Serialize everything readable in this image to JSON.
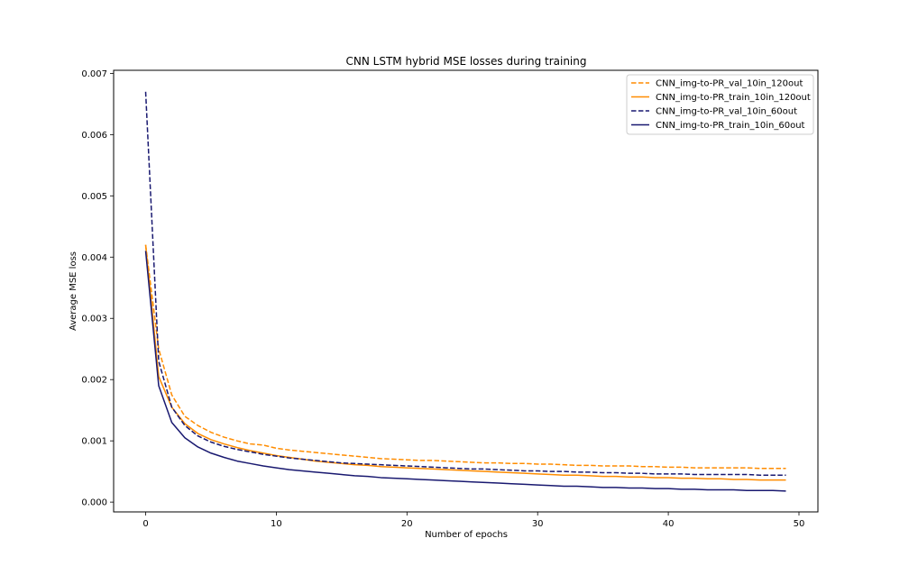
{
  "chart_data": {
    "type": "line",
    "title": "CNN LSTM hybrid MSE losses during training",
    "xlabel": "Number of epochs",
    "ylabel": "Average MSE loss",
    "xlim": [
      -2.45,
      51.45
    ],
    "ylim": [
      -0.00016,
      0.00705
    ],
    "xticks": [
      0,
      10,
      20,
      30,
      40,
      50
    ],
    "xtick_labels": [
      "0",
      "10",
      "20",
      "30",
      "40",
      "50"
    ],
    "yticks": [
      0.0,
      0.001,
      0.002,
      0.003,
      0.004,
      0.005,
      0.006,
      0.007
    ],
    "ytick_labels": [
      "0.000",
      "0.001",
      "0.002",
      "0.003",
      "0.004",
      "0.005",
      "0.006",
      "0.007"
    ],
    "grid": false,
    "legend_position": "top-right",
    "x": [
      0,
      1,
      2,
      3,
      4,
      5,
      6,
      7,
      8,
      9,
      10,
      11,
      12,
      13,
      14,
      15,
      16,
      17,
      18,
      19,
      20,
      21,
      22,
      23,
      24,
      25,
      26,
      27,
      28,
      29,
      30,
      31,
      32,
      33,
      34,
      35,
      36,
      37,
      38,
      39,
      40,
      41,
      42,
      43,
      44,
      45,
      46,
      47,
      48,
      49
    ],
    "series": [
      {
        "name": "CNN_img-to-PR_val_10in_120out",
        "color": "#ff8c00",
        "dashed": true,
        "values": [
          0.0042,
          0.0025,
          0.00175,
          0.0014,
          0.00125,
          0.00114,
          0.00106,
          0.001,
          0.00095,
          0.00093,
          0.00088,
          0.00085,
          0.00083,
          0.00081,
          0.00079,
          0.00077,
          0.00075,
          0.00073,
          0.00071,
          0.0007,
          0.00069,
          0.00068,
          0.00068,
          0.00067,
          0.00066,
          0.00065,
          0.00064,
          0.00064,
          0.00063,
          0.00063,
          0.00062,
          0.00062,
          0.00061,
          0.0006,
          0.0006,
          0.00059,
          0.00059,
          0.00059,
          0.00058,
          0.00058,
          0.00057,
          0.00057,
          0.00056,
          0.00056,
          0.00056,
          0.00056,
          0.00056,
          0.00055,
          0.00055,
          0.00055
        ]
      },
      {
        "name": "CNN_img-to-PR_train_10in_120out",
        "color": "#ff8c00",
        "dashed": false,
        "values": [
          0.0042,
          0.00205,
          0.00155,
          0.00128,
          0.00112,
          0.00102,
          0.00095,
          0.00089,
          0.00084,
          0.0008,
          0.00076,
          0.00073,
          0.0007,
          0.00067,
          0.00065,
          0.00063,
          0.00061,
          0.0006,
          0.00058,
          0.00057,
          0.00056,
          0.00055,
          0.00054,
          0.00053,
          0.00052,
          0.00051,
          0.0005,
          0.00049,
          0.00048,
          0.00047,
          0.00046,
          0.00045,
          0.00044,
          0.00044,
          0.00043,
          0.00042,
          0.00042,
          0.00041,
          0.00041,
          0.0004,
          0.0004,
          0.00039,
          0.00039,
          0.00038,
          0.00038,
          0.00037,
          0.00037,
          0.00036,
          0.00036,
          0.00036
        ]
      },
      {
        "name": "CNN_img-to-PR_val_10in_60out",
        "color": "#191970",
        "dashed": true,
        "values": [
          0.0067,
          0.0023,
          0.00155,
          0.00125,
          0.00108,
          0.00098,
          0.00091,
          0.00086,
          0.00082,
          0.00078,
          0.00075,
          0.00072,
          0.0007,
          0.00068,
          0.00066,
          0.00064,
          0.00063,
          0.00062,
          0.00061,
          0.0006,
          0.00059,
          0.00058,
          0.00057,
          0.00056,
          0.00055,
          0.00054,
          0.00054,
          0.00053,
          0.00052,
          0.00051,
          0.00051,
          0.0005,
          0.0005,
          0.00049,
          0.00049,
          0.00048,
          0.00048,
          0.00047,
          0.00047,
          0.00046,
          0.00046,
          0.00046,
          0.00045,
          0.00045,
          0.00045,
          0.00045,
          0.00045,
          0.00044,
          0.00044,
          0.00044
        ]
      },
      {
        "name": "CNN_img-to-PR_train_10in_60out",
        "color": "#191970",
        "dashed": false,
        "values": [
          0.0041,
          0.0019,
          0.0013,
          0.00105,
          0.0009,
          0.0008,
          0.00073,
          0.00067,
          0.00063,
          0.00059,
          0.00056,
          0.00053,
          0.00051,
          0.00049,
          0.00047,
          0.00045,
          0.00043,
          0.00042,
          0.0004,
          0.00039,
          0.00038,
          0.00037,
          0.00036,
          0.00035,
          0.00034,
          0.00033,
          0.00032,
          0.00031,
          0.0003,
          0.00029,
          0.00028,
          0.00027,
          0.00026,
          0.00026,
          0.00025,
          0.00024,
          0.00024,
          0.00023,
          0.00023,
          0.00022,
          0.00022,
          0.00021,
          0.00021,
          0.0002,
          0.0002,
          0.0002,
          0.00019,
          0.00019,
          0.00019,
          0.00018
        ]
      }
    ]
  }
}
